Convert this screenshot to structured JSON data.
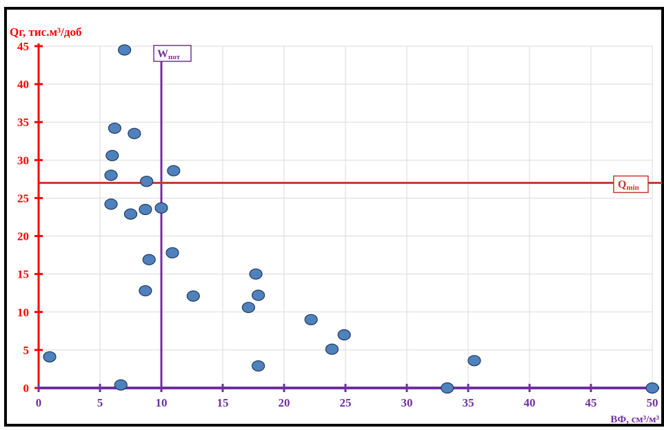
{
  "chart_data": {
    "type": "scatter",
    "ylabel": "Qг, тис.м³/доб",
    "xlabel": "ВФ, см³/м³",
    "xlim": [
      0,
      50
    ],
    "ylim": [
      0,
      45
    ],
    "x_ticks": [
      0,
      5,
      10,
      15,
      20,
      25,
      30,
      35,
      40,
      45,
      50
    ],
    "y_ticks": [
      0,
      5,
      10,
      15,
      20,
      25,
      30,
      35,
      40,
      45
    ],
    "grid": true,
    "series": [
      {
        "marker_color": "#4f81bd",
        "points": [
          {
            "x": 7.0,
            "y": 44.5
          },
          {
            "x": 6.2,
            "y": 34.2
          },
          {
            "x": 7.8,
            "y": 33.5
          },
          {
            "x": 6.0,
            "y": 30.6
          },
          {
            "x": 11.0,
            "y": 28.6
          },
          {
            "x": 5.9,
            "y": 28.0
          },
          {
            "x": 8.8,
            "y": 27.2
          },
          {
            "x": 5.9,
            "y": 24.2
          },
          {
            "x": 8.7,
            "y": 23.5
          },
          {
            "x": 10.0,
            "y": 23.7
          },
          {
            "x": 7.5,
            "y": 22.9
          },
          {
            "x": 10.9,
            "y": 17.8
          },
          {
            "x": 9.0,
            "y": 16.9
          },
          {
            "x": 17.7,
            "y": 15.0
          },
          {
            "x": 8.7,
            "y": 12.8
          },
          {
            "x": 12.6,
            "y": 12.1
          },
          {
            "x": 17.9,
            "y": 12.2
          },
          {
            "x": 17.1,
            "y": 10.6
          },
          {
            "x": 22.2,
            "y": 9.0
          },
          {
            "x": 24.9,
            "y": 7.0
          },
          {
            "x": 23.9,
            "y": 5.1
          },
          {
            "x": 0.9,
            "y": 4.1
          },
          {
            "x": 35.5,
            "y": 3.6
          },
          {
            "x": 17.9,
            "y": 2.9
          },
          {
            "x": 6.7,
            "y": 0.4
          },
          {
            "x": 33.3,
            "y": 0.0
          },
          {
            "x": 50.0,
            "y": 0.0
          }
        ]
      }
    ],
    "reference_lines": [
      {
        "orientation": "vertical",
        "value": 10,
        "label_main": "W",
        "label_sub": "пот",
        "color": "#7030a0"
      },
      {
        "orientation": "horizontal",
        "value": 27,
        "label_main": "Q",
        "label_sub": "min",
        "color": "#c0392b"
      }
    ],
    "colors": {
      "y_axis": "#ff0000",
      "x_axis": "#7030a0",
      "y_tick_text": "#ff0000",
      "x_tick_text": "#7030a0",
      "grid": "#d9d9d9"
    }
  }
}
